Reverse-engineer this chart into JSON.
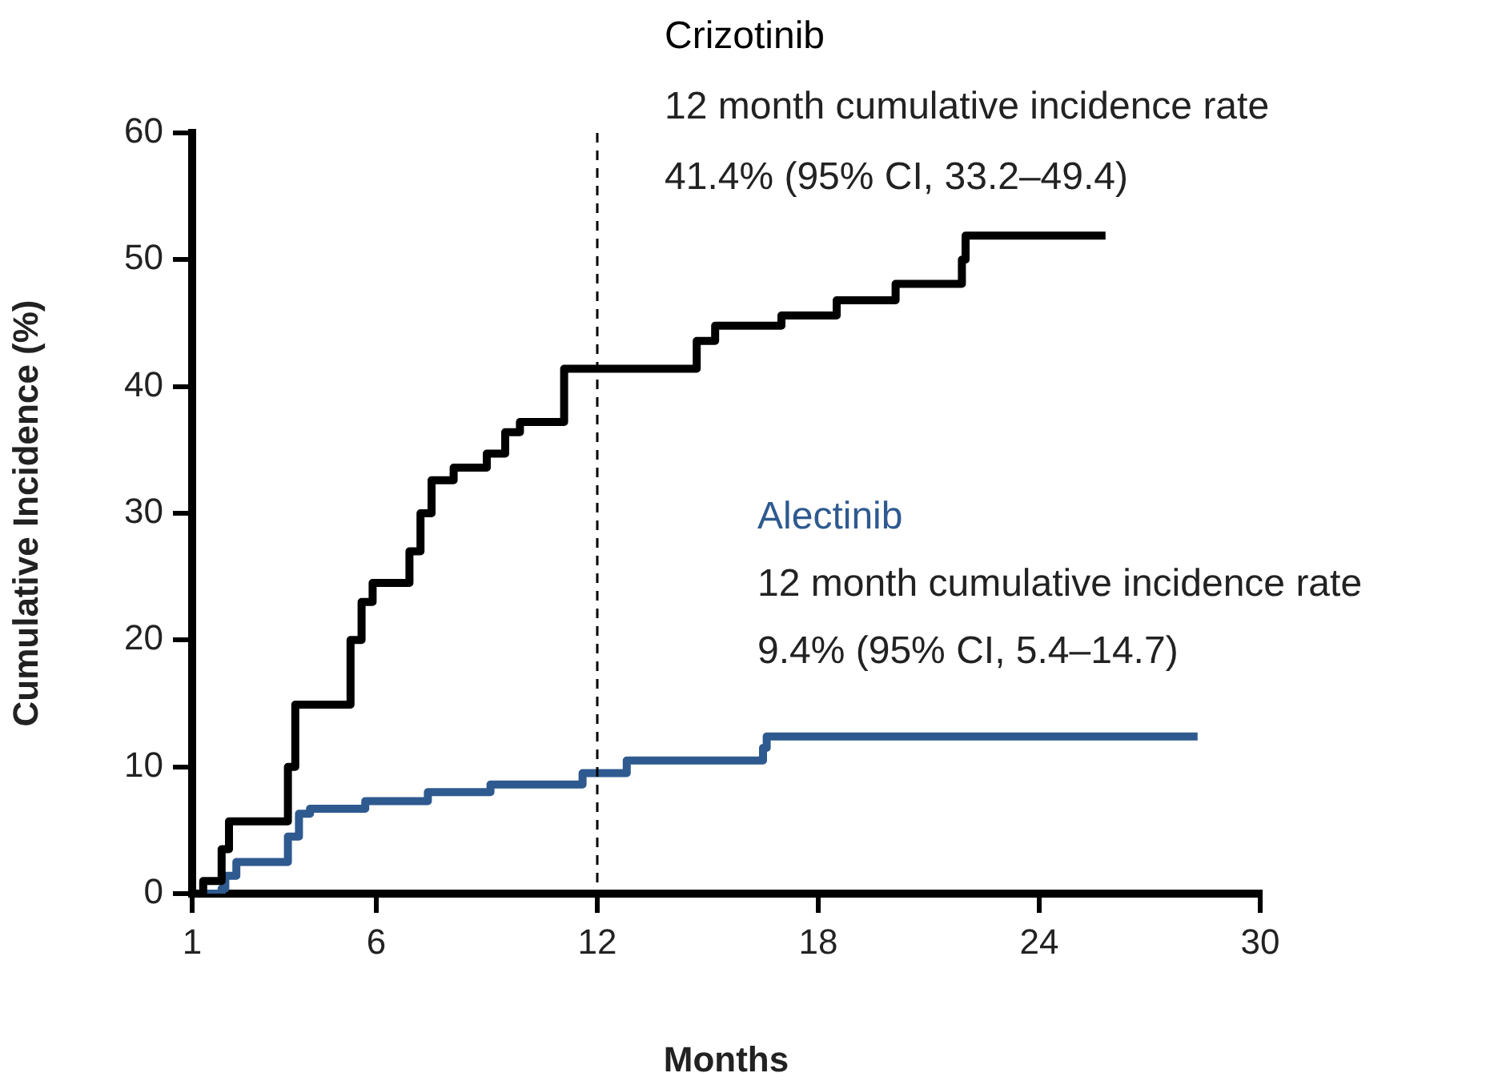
{
  "chart_data": {
    "type": "step",
    "xlabel": "Months",
    "ylabel": "Cumulative Incidence (%)",
    "xlim": [
      1,
      30
    ],
    "xticks": [
      1,
      6,
      12,
      18,
      24,
      30
    ],
    "ylim": [
      0,
      60
    ],
    "yticks": [
      0,
      10,
      20,
      30,
      40,
      50,
      60
    ],
    "series": [
      {
        "name": "Crizotinib",
        "color": "#000000",
        "x": [
          1,
          1.3,
          1.8,
          2.0,
          3.6,
          3.8,
          5.3,
          5.6,
          5.9,
          6.9,
          7.2,
          7.5,
          8.1,
          9.0,
          9.5,
          9.9,
          11.1,
          14.5,
          14.7,
          15.2,
          17.0,
          18.5,
          20.1,
          21.9,
          22.0,
          25.8
        ],
        "values": [
          0,
          1.0,
          3.5,
          5.7,
          10,
          14.9,
          20,
          23,
          24.5,
          27,
          30,
          32.6,
          33.6,
          34.7,
          36.4,
          37.2,
          41.4,
          41.4,
          43.6,
          44.8,
          45.6,
          46.8,
          48.1,
          50,
          51.9,
          51.9
        ]
      },
      {
        "name": "Alectinib",
        "color": "#2e5a8f",
        "x": [
          1,
          1.8,
          1.9,
          2.2,
          3.6,
          3.9,
          4.2,
          5.7,
          7.4,
          9.1,
          11.6,
          12.8,
          16.5,
          16.6,
          28.3
        ],
        "values": [
          0,
          0.4,
          1.4,
          2.5,
          4.5,
          6.3,
          6.7,
          7.3,
          8.0,
          8.6,
          9.5,
          10.5,
          11.5,
          12.4,
          12.4
        ]
      }
    ],
    "ref_lines": [
      {
        "axis": "x",
        "value": 12,
        "color": "#000000",
        "line_style": "dashed"
      }
    ],
    "annotations": [
      "12 month cumulative incidence rate",
      "41.4% (95% CI, 33.2–49.4)",
      "12 month cumulative incidence rate",
      "9.4% (95% CI, 5.4–14.7)"
    ],
    "line_style": "solid",
    "marker": "none",
    "legend": false,
    "grid": false
  }
}
